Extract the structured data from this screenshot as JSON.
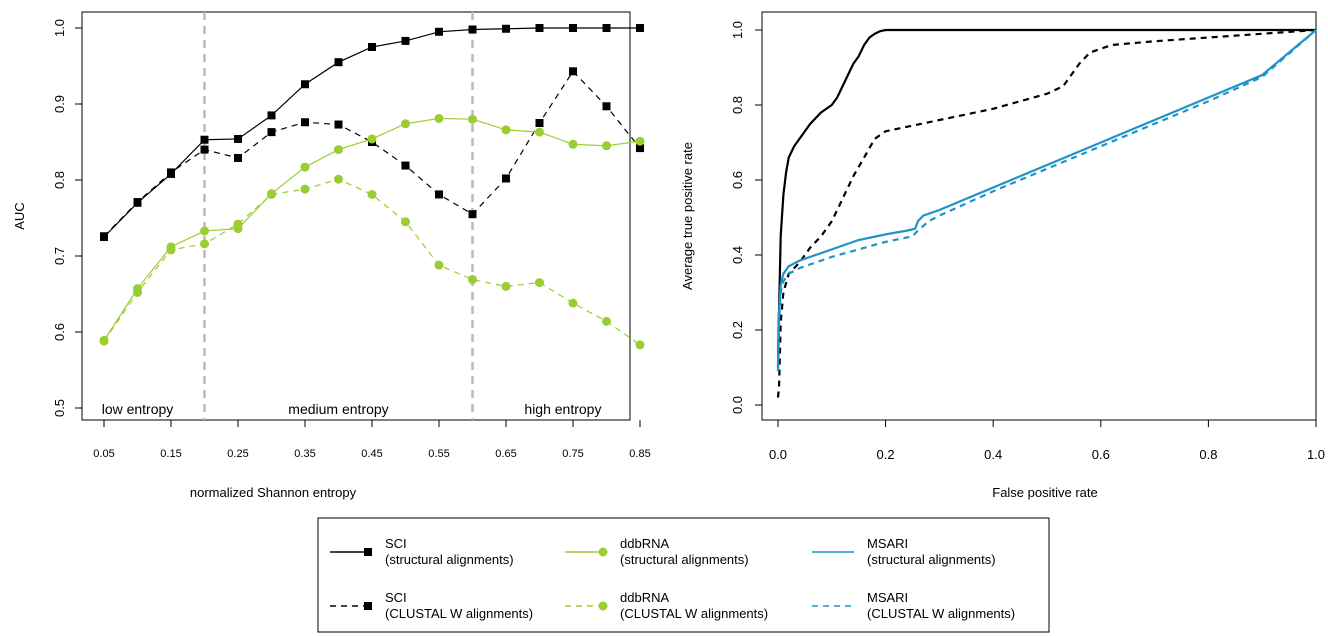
{
  "colors": {
    "sci": "#000000",
    "ddbrna": "#9acd32",
    "msari": "#1f93c9",
    "divider": "#bbbbbb"
  },
  "chart_data": [
    {
      "type": "line",
      "xlabel": "normalized Shannon entropy",
      "ylabel": "AUC",
      "ylim": [
        0.5,
        1.0
      ],
      "yticks": [
        "0.5",
        "0.6",
        "0.7",
        "0.8",
        "0.9",
        "1.0"
      ],
      "x": [
        0.05,
        0.1,
        0.15,
        0.2,
        0.25,
        0.3,
        0.35,
        0.4,
        0.45,
        0.5,
        0.55,
        0.6,
        0.65,
        0.7,
        0.75,
        0.8,
        0.85
      ],
      "xtick_labels": [
        "0.05",
        "0.15",
        "0.25",
        "0.35",
        "0.45",
        "0.55",
        "0.65",
        "0.75",
        "0.85"
      ],
      "xtick_values": [
        0.05,
        0.15,
        0.25,
        0.35,
        0.45,
        0.55,
        0.65,
        0.75,
        0.85
      ],
      "dividers": [
        0.2,
        0.6
      ],
      "regions": [
        {
          "label": "low entropy",
          "x": 0.1
        },
        {
          "label": "medium entropy",
          "x": 0.4
        },
        {
          "label": "high entropy",
          "x": 0.735
        }
      ],
      "series": [
        {
          "name": "SCI (structural alignments)",
          "color": "sci",
          "dash": "solid",
          "marker": "square",
          "values": [
            0.725,
            0.77,
            0.808,
            0.853,
            0.854,
            0.885,
            0.926,
            0.955,
            0.975,
            0.983,
            0.995,
            0.998,
            0.999,
            1.0,
            1.0,
            1.0,
            1.0
          ]
        },
        {
          "name": "SCI (CLUSTAL W alignments)",
          "color": "sci",
          "dash": "dashed",
          "marker": "square",
          "values": [
            0.726,
            0.771,
            0.81,
            0.84,
            0.829,
            0.863,
            0.876,
            0.873,
            0.85,
            0.819,
            0.781,
            0.755,
            0.802,
            0.875,
            0.943,
            0.897,
            0.842
          ]
        },
        {
          "name": "ddbRNA (structural alignments)",
          "color": "ddbrna",
          "dash": "solid",
          "marker": "circle",
          "values": [
            0.589,
            0.657,
            0.712,
            0.733,
            0.736,
            0.782,
            0.817,
            0.84,
            0.854,
            0.874,
            0.881,
            0.88,
            0.866,
            0.863,
            0.847,
            0.845,
            0.851
          ]
        },
        {
          "name": "ddbRNA (CLUSTAL W alignments)",
          "color": "ddbrna",
          "dash": "dashed",
          "marker": "circle",
          "values": [
            0.588,
            0.652,
            0.708,
            0.716,
            0.742,
            0.781,
            0.788,
            0.801,
            0.781,
            0.745,
            0.688,
            0.669,
            0.66,
            0.665,
            0.638,
            0.614,
            0.583
          ]
        }
      ]
    },
    {
      "type": "line",
      "xlabel": "False positive rate",
      "ylabel": "Average true positive rate",
      "xlim": [
        0,
        1
      ],
      "ylim": [
        0,
        1
      ],
      "xticks": [
        "0.0",
        "0.2",
        "0.4",
        "0.6",
        "0.8",
        "1.0"
      ],
      "yticks": [
        "0.0",
        "0.2",
        "0.4",
        "0.6",
        "0.8",
        "1.0"
      ],
      "series": [
        {
          "name": "SCI (structural alignments)",
          "color": "sci",
          "dash": "solid",
          "points": [
            [
              0,
              0.1
            ],
            [
              0.001,
              0.2
            ],
            [
              0.003,
              0.32
            ],
            [
              0.005,
              0.45
            ],
            [
              0.01,
              0.56
            ],
            [
              0.015,
              0.62
            ],
            [
              0.02,
              0.66
            ],
            [
              0.03,
              0.69
            ],
            [
              0.04,
              0.71
            ],
            [
              0.05,
              0.73
            ],
            [
              0.06,
              0.75
            ],
            [
              0.07,
              0.765
            ],
            [
              0.08,
              0.78
            ],
            [
              0.09,
              0.79
            ],
            [
              0.1,
              0.8
            ],
            [
              0.11,
              0.82
            ],
            [
              0.12,
              0.85
            ],
            [
              0.13,
              0.88
            ],
            [
              0.14,
              0.91
            ],
            [
              0.15,
              0.93
            ],
            [
              0.16,
              0.96
            ],
            [
              0.17,
              0.98
            ],
            [
              0.18,
              0.99
            ],
            [
              0.19,
              0.997
            ],
            [
              0.2,
              1.0
            ],
            [
              1.0,
              1.0
            ]
          ]
        },
        {
          "name": "SCI (CLUSTAL W alignments)",
          "color": "sci",
          "dash": "dashed",
          "points": [
            [
              0,
              0.02
            ],
            [
              0.002,
              0.05
            ],
            [
              0.005,
              0.22
            ],
            [
              0.01,
              0.3
            ],
            [
              0.02,
              0.35
            ],
            [
              0.04,
              0.38
            ],
            [
              0.06,
              0.42
            ],
            [
              0.08,
              0.45
            ],
            [
              0.1,
              0.49
            ],
            [
              0.12,
              0.55
            ],
            [
              0.14,
              0.61
            ],
            [
              0.16,
              0.66
            ],
            [
              0.18,
              0.71
            ],
            [
              0.2,
              0.73
            ],
            [
              0.25,
              0.745
            ],
            [
              0.3,
              0.76
            ],
            [
              0.35,
              0.775
            ],
            [
              0.4,
              0.79
            ],
            [
              0.45,
              0.81
            ],
            [
              0.5,
              0.83
            ],
            [
              0.53,
              0.85
            ],
            [
              0.56,
              0.91
            ],
            [
              0.58,
              0.94
            ],
            [
              0.62,
              0.96
            ],
            [
              0.7,
              0.97
            ],
            [
              0.8,
              0.98
            ],
            [
              0.9,
              0.99
            ],
            [
              1.0,
              1.0
            ]
          ]
        },
        {
          "name": "MSARI (structural alignments)",
          "color": "msari",
          "dash": "solid",
          "points": [
            [
              0,
              0.1
            ],
            [
              0.002,
              0.25
            ],
            [
              0.005,
              0.32
            ],
            [
              0.01,
              0.35
            ],
            [
              0.02,
              0.37
            ],
            [
              0.04,
              0.385
            ],
            [
              0.06,
              0.395
            ],
            [
              0.08,
              0.405
            ],
            [
              0.1,
              0.415
            ],
            [
              0.12,
              0.425
            ],
            [
              0.15,
              0.44
            ],
            [
              0.2,
              0.455
            ],
            [
              0.24,
              0.465
            ],
            [
              0.255,
              0.47
            ],
            [
              0.26,
              0.49
            ],
            [
              0.27,
              0.505
            ],
            [
              0.3,
              0.52
            ],
            [
              0.4,
              0.58
            ],
            [
              0.5,
              0.64
            ],
            [
              0.6,
              0.7
            ],
            [
              0.7,
              0.76
            ],
            [
              0.8,
              0.82
            ],
            [
              0.9,
              0.88
            ],
            [
              1.0,
              1.0
            ]
          ]
        },
        {
          "name": "MSARI (CLUSTAL W alignments)",
          "color": "msari",
          "dash": "dashed",
          "points": [
            [
              0,
              0.09
            ],
            [
              0.002,
              0.22
            ],
            [
              0.005,
              0.3
            ],
            [
              0.01,
              0.33
            ],
            [
              0.02,
              0.35
            ],
            [
              0.04,
              0.365
            ],
            [
              0.06,
              0.375
            ],
            [
              0.08,
              0.385
            ],
            [
              0.1,
              0.395
            ],
            [
              0.15,
              0.415
            ],
            [
              0.2,
              0.435
            ],
            [
              0.25,
              0.45
            ],
            [
              0.26,
              0.465
            ],
            [
              0.28,
              0.49
            ],
            [
              0.3,
              0.505
            ],
            [
              0.4,
              0.57
            ],
            [
              0.5,
              0.63
            ],
            [
              0.6,
              0.69
            ],
            [
              0.7,
              0.75
            ],
            [
              0.8,
              0.81
            ],
            [
              0.9,
              0.875
            ],
            [
              1.0,
              1.0
            ]
          ]
        }
      ]
    }
  ],
  "legend": {
    "placement": "bottom-center",
    "entries": [
      {
        "title": "SCI",
        "subtitle": "(structural alignments)",
        "color": "sci",
        "dash": "solid",
        "marker": "square"
      },
      {
        "title": "ddbRNA",
        "subtitle": "(structural alignments)",
        "color": "ddbrna",
        "dash": "solid",
        "marker": "circle"
      },
      {
        "title": "MSARI",
        "subtitle": "(structural alignments)",
        "color": "msari",
        "dash": "solid",
        "marker": "none"
      },
      {
        "title": "SCI",
        "subtitle": "(CLUSTAL W alignments)",
        "color": "sci",
        "dash": "dashed",
        "marker": "square"
      },
      {
        "title": "ddbRNA",
        "subtitle": "(CLUSTAL W alignments)",
        "color": "ddbrna",
        "dash": "dashed",
        "marker": "circle"
      },
      {
        "title": "MSARI",
        "subtitle": "(CLUSTAL W alignments)",
        "color": "msari",
        "dash": "dashed",
        "marker": "none"
      }
    ]
  }
}
